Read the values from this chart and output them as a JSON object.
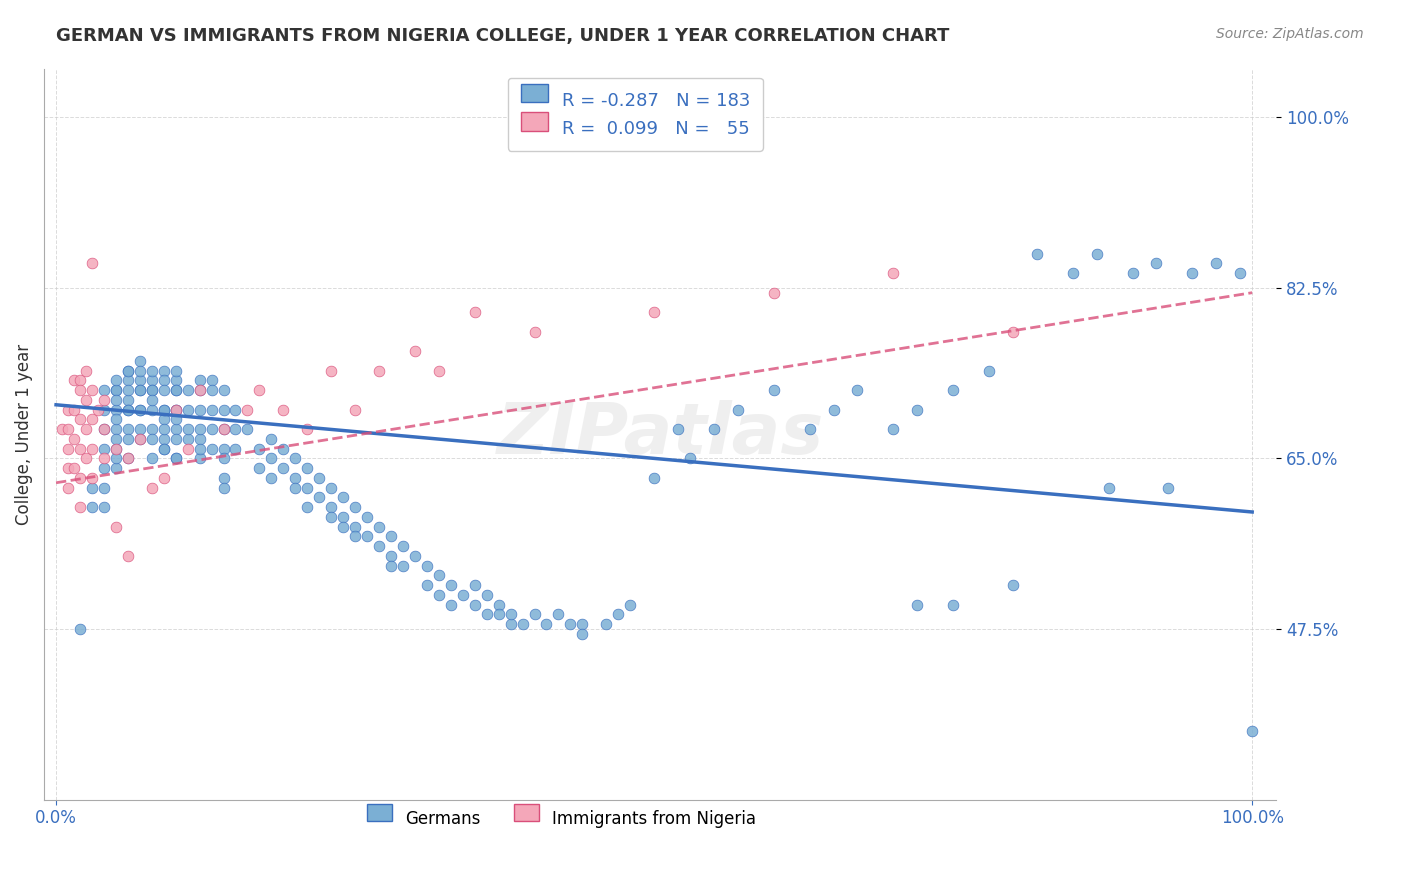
{
  "title": "GERMAN VS IMMIGRANTS FROM NIGERIA COLLEGE, UNDER 1 YEAR CORRELATION CHART",
  "source": "Source: ZipAtlas.com",
  "xlabel": "",
  "ylabel": "College, Under 1 year",
  "legend_labels": [
    "Germans",
    "Immigrants from Nigeria"
  ],
  "legend_r_n": [
    {
      "R": "-0.287",
      "N": "183"
    },
    {
      "R": "0.099",
      "N": "55"
    }
  ],
  "blue_color": "#7bafd4",
  "pink_color": "#f4a7b9",
  "blue_line_color": "#3a6fbf",
  "pink_line_color": "#e87d9a",
  "background_color": "#ffffff",
  "grid_color": "#cccccc",
  "title_color": "#333333",
  "axis_label_color": "#3a6fbf",
  "right_tick_color": "#3a6fbf",
  "xlim": [
    0.0,
    1.0
  ],
  "ylim_data": [
    0.3,
    1.05
  ],
  "x_ticks": [
    0.0,
    1.0
  ],
  "x_tick_labels": [
    "0.0%",
    "100.0%"
  ],
  "y_ticks": [
    0.475,
    0.65,
    0.825,
    1.0
  ],
  "y_tick_labels": [
    "47.5%",
    "65.0%",
    "82.5%",
    "100.0%"
  ],
  "german_x": [
    0.02,
    0.03,
    0.03,
    0.04,
    0.04,
    0.04,
    0.04,
    0.04,
    0.04,
    0.04,
    0.05,
    0.05,
    0.05,
    0.05,
    0.05,
    0.05,
    0.05,
    0.05,
    0.05,
    0.05,
    0.05,
    0.06,
    0.06,
    0.06,
    0.06,
    0.06,
    0.06,
    0.06,
    0.06,
    0.06,
    0.06,
    0.07,
    0.07,
    0.07,
    0.07,
    0.07,
    0.07,
    0.07,
    0.07,
    0.07,
    0.08,
    0.08,
    0.08,
    0.08,
    0.08,
    0.08,
    0.08,
    0.08,
    0.08,
    0.09,
    0.09,
    0.09,
    0.09,
    0.09,
    0.09,
    0.09,
    0.09,
    0.09,
    0.09,
    0.1,
    0.1,
    0.1,
    0.1,
    0.1,
    0.1,
    0.1,
    0.1,
    0.1,
    0.1,
    0.1,
    0.11,
    0.11,
    0.11,
    0.11,
    0.12,
    0.12,
    0.12,
    0.12,
    0.12,
    0.12,
    0.12,
    0.13,
    0.13,
    0.13,
    0.13,
    0.13,
    0.14,
    0.14,
    0.14,
    0.14,
    0.14,
    0.14,
    0.14,
    0.15,
    0.15,
    0.15,
    0.16,
    0.17,
    0.17,
    0.18,
    0.18,
    0.18,
    0.19,
    0.19,
    0.2,
    0.2,
    0.2,
    0.21,
    0.21,
    0.21,
    0.22,
    0.22,
    0.23,
    0.23,
    0.23,
    0.24,
    0.24,
    0.24,
    0.25,
    0.25,
    0.25,
    0.26,
    0.26,
    0.27,
    0.27,
    0.28,
    0.28,
    0.28,
    0.29,
    0.29,
    0.3,
    0.31,
    0.31,
    0.32,
    0.32,
    0.33,
    0.33,
    0.34,
    0.35,
    0.35,
    0.36,
    0.36,
    0.37,
    0.37,
    0.38,
    0.38,
    0.39,
    0.4,
    0.41,
    0.42,
    0.43,
    0.44,
    0.44,
    0.46,
    0.47,
    0.48,
    0.5,
    0.52,
    0.53,
    0.55,
    0.57,
    0.6,
    0.63,
    0.65,
    0.67,
    0.7,
    0.72,
    0.75,
    0.78,
    0.82,
    0.85,
    0.87,
    0.9,
    0.92,
    0.95,
    0.97,
    0.99,
    1.0,
    0.88,
    0.93,
    0.75,
    0.8,
    0.72
  ],
  "german_y": [
    0.475,
    0.62,
    0.6,
    0.68,
    0.7,
    0.72,
    0.66,
    0.64,
    0.62,
    0.6,
    0.72,
    0.7,
    0.68,
    0.66,
    0.64,
    0.72,
    0.73,
    0.71,
    0.69,
    0.67,
    0.65,
    0.74,
    0.73,
    0.71,
    0.7,
    0.68,
    0.67,
    0.65,
    0.74,
    0.72,
    0.7,
    0.75,
    0.73,
    0.72,
    0.7,
    0.68,
    0.67,
    0.74,
    0.72,
    0.7,
    0.73,
    0.72,
    0.7,
    0.68,
    0.67,
    0.65,
    0.74,
    0.72,
    0.71,
    0.7,
    0.69,
    0.67,
    0.66,
    0.74,
    0.73,
    0.72,
    0.7,
    0.68,
    0.66,
    0.65,
    0.73,
    0.72,
    0.7,
    0.68,
    0.67,
    0.65,
    0.74,
    0.72,
    0.7,
    0.69,
    0.67,
    0.72,
    0.7,
    0.68,
    0.67,
    0.65,
    0.73,
    0.72,
    0.7,
    0.68,
    0.66,
    0.73,
    0.72,
    0.7,
    0.68,
    0.66,
    0.72,
    0.7,
    0.68,
    0.66,
    0.65,
    0.63,
    0.62,
    0.7,
    0.68,
    0.66,
    0.68,
    0.66,
    0.64,
    0.67,
    0.65,
    0.63,
    0.66,
    0.64,
    0.65,
    0.63,
    0.62,
    0.64,
    0.62,
    0.6,
    0.63,
    0.61,
    0.62,
    0.6,
    0.59,
    0.61,
    0.59,
    0.58,
    0.6,
    0.58,
    0.57,
    0.59,
    0.57,
    0.58,
    0.56,
    0.57,
    0.55,
    0.54,
    0.56,
    0.54,
    0.55,
    0.54,
    0.52,
    0.53,
    0.51,
    0.52,
    0.5,
    0.51,
    0.52,
    0.5,
    0.51,
    0.49,
    0.5,
    0.49,
    0.48,
    0.49,
    0.48,
    0.49,
    0.48,
    0.49,
    0.48,
    0.48,
    0.47,
    0.48,
    0.49,
    0.5,
    0.63,
    0.68,
    0.65,
    0.68,
    0.7,
    0.72,
    0.68,
    0.7,
    0.72,
    0.68,
    0.7,
    0.72,
    0.74,
    0.86,
    0.84,
    0.86,
    0.84,
    0.85,
    0.84,
    0.85,
    0.84,
    0.37,
    0.62,
    0.62,
    0.5,
    0.52,
    0.5
  ],
  "nigeria_x": [
    0.005,
    0.01,
    0.01,
    0.01,
    0.01,
    0.01,
    0.015,
    0.015,
    0.015,
    0.015,
    0.02,
    0.02,
    0.02,
    0.02,
    0.02,
    0.02,
    0.025,
    0.025,
    0.025,
    0.025,
    0.03,
    0.03,
    0.03,
    0.03,
    0.03,
    0.035,
    0.04,
    0.04,
    0.04,
    0.05,
    0.05,
    0.06,
    0.06,
    0.07,
    0.08,
    0.09,
    0.1,
    0.11,
    0.12,
    0.14,
    0.16,
    0.17,
    0.19,
    0.21,
    0.23,
    0.25,
    0.27,
    0.3,
    0.32,
    0.35,
    0.4,
    0.5,
    0.6,
    0.7,
    0.8
  ],
  "nigeria_y": [
    0.68,
    0.7,
    0.68,
    0.66,
    0.64,
    0.62,
    0.73,
    0.7,
    0.67,
    0.64,
    0.73,
    0.72,
    0.69,
    0.66,
    0.63,
    0.6,
    0.74,
    0.71,
    0.68,
    0.65,
    0.72,
    0.69,
    0.66,
    0.63,
    0.85,
    0.7,
    0.71,
    0.68,
    0.65,
    0.66,
    0.58,
    0.65,
    0.55,
    0.67,
    0.62,
    0.63,
    0.7,
    0.66,
    0.72,
    0.68,
    0.7,
    0.72,
    0.7,
    0.68,
    0.74,
    0.7,
    0.74,
    0.76,
    0.74,
    0.8,
    0.78,
    0.8,
    0.82,
    0.84,
    0.78
  ],
  "german_trend_x": [
    0.0,
    1.0
  ],
  "german_trend_y_start": 0.705,
  "german_trend_y_end": 0.595,
  "nigeria_trend_x": [
    0.0,
    1.0
  ],
  "nigeria_trend_y_start": 0.625,
  "nigeria_trend_y_end": 0.82,
  "watermark": "ZIPatlas"
}
